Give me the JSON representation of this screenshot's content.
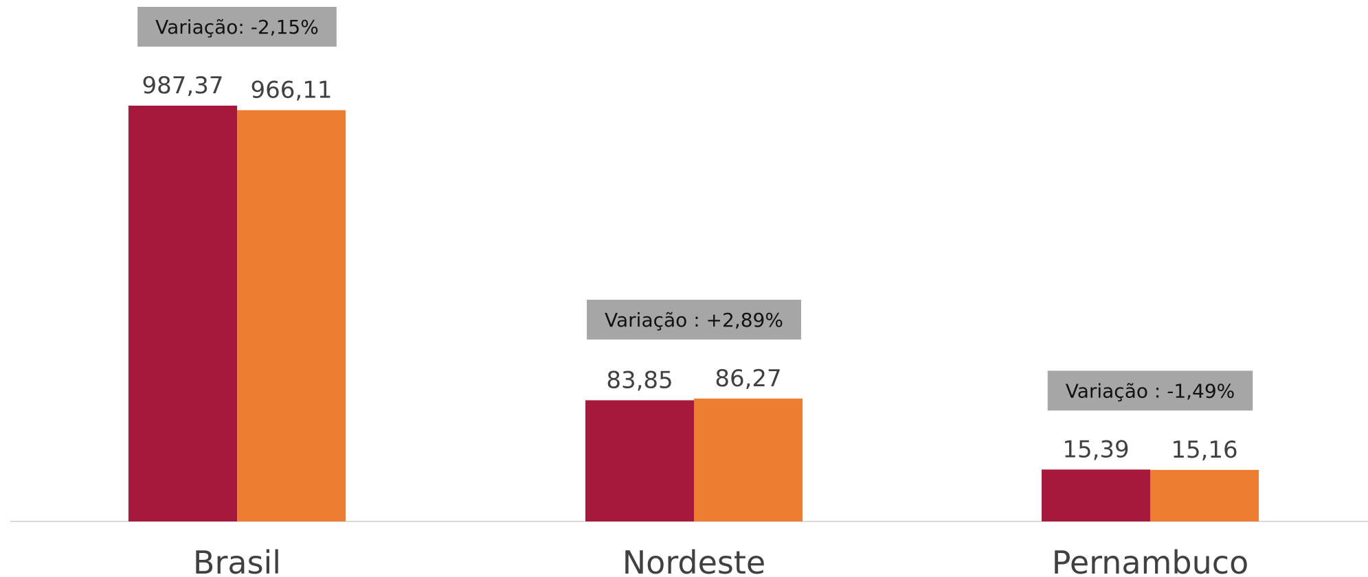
{
  "chart_data": {
    "type": "bar",
    "scale": "sqrt",
    "categories": [
      "Brasil",
      "Nordeste",
      "Pernambuco"
    ],
    "series": [
      {
        "color": "#a6193c",
        "values": [
          987.37,
          83.85,
          15.39
        ],
        "value_labels": [
          "987,37",
          "83,85",
          "15,39"
        ]
      },
      {
        "color": "#ed7d31",
        "values": [
          966.11,
          86.27,
          15.16
        ],
        "value_labels": [
          "966,11",
          "86,27",
          "15,16"
        ]
      }
    ],
    "annotations": [
      "Variação: -2,15%",
      "Variação : +2,89%",
      "Variação : -1,49%"
    ],
    "annotation_color": "#a6a6a6"
  }
}
